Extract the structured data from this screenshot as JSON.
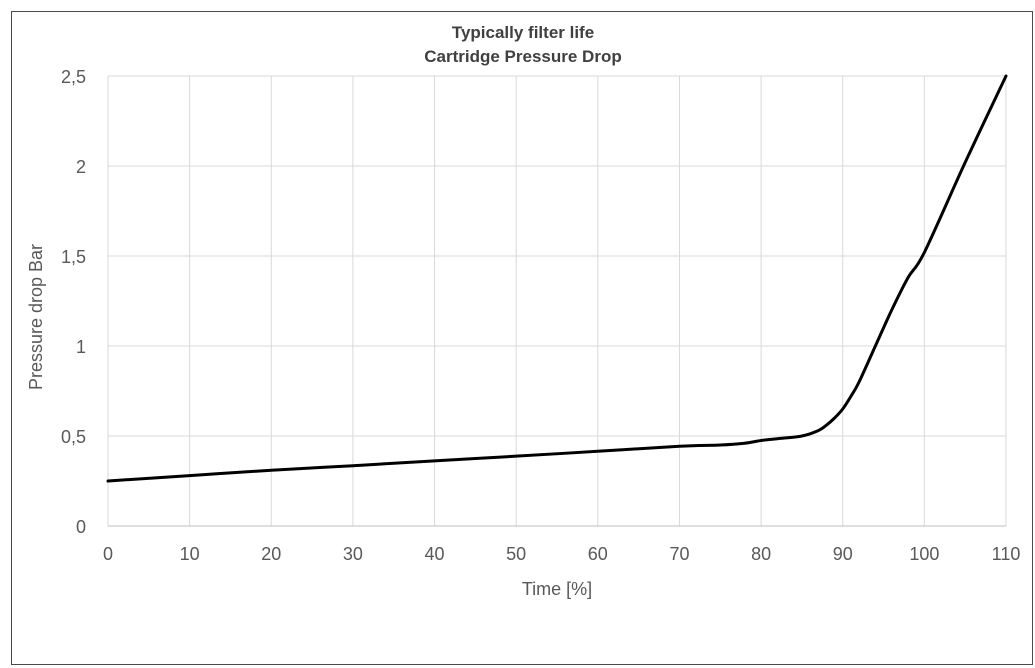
{
  "chart_data": {
    "type": "line",
    "title": "Typically filter life",
    "subtitle": "Cartridge Pressure Drop",
    "xlabel": "Time [%]",
    "ylabel": "Pressure drop Bar",
    "xlim": [
      0,
      110
    ],
    "ylim": [
      0,
      2.5
    ],
    "x_ticks": [
      0,
      10,
      20,
      30,
      40,
      50,
      60,
      70,
      80,
      90,
      100,
      110
    ],
    "y_ticks": [
      0,
      0.5,
      1,
      1.5,
      2,
      2.5
    ],
    "x_tick_labels": [
      "0",
      "10",
      "20",
      "30",
      "40",
      "50",
      "60",
      "70",
      "80",
      "90",
      "100",
      "110"
    ],
    "y_tick_labels": [
      "0",
      "0,5",
      "1",
      "1,5",
      "2",
      "2,5"
    ],
    "grid": true,
    "legend": "none",
    "colors": {
      "line": "#000000",
      "grid": "#d9d9d9",
      "text": "#595959",
      "title": "#404040"
    },
    "series": [
      {
        "x": [
          0,
          10,
          20,
          30,
          40,
          50,
          60,
          70,
          75,
          78,
          80,
          82,
          85,
          87,
          88,
          89,
          90,
          91,
          92,
          94,
          96,
          98,
          100,
          105,
          110
        ],
        "y": [
          0.25,
          0.28,
          0.31,
          0.335,
          0.362,
          0.388,
          0.415,
          0.443,
          0.45,
          0.46,
          0.475,
          0.485,
          0.5,
          0.53,
          0.56,
          0.6,
          0.65,
          0.72,
          0.8,
          1.0,
          1.2,
          1.38,
          1.52,
          2.02,
          2.5
        ]
      }
    ]
  }
}
